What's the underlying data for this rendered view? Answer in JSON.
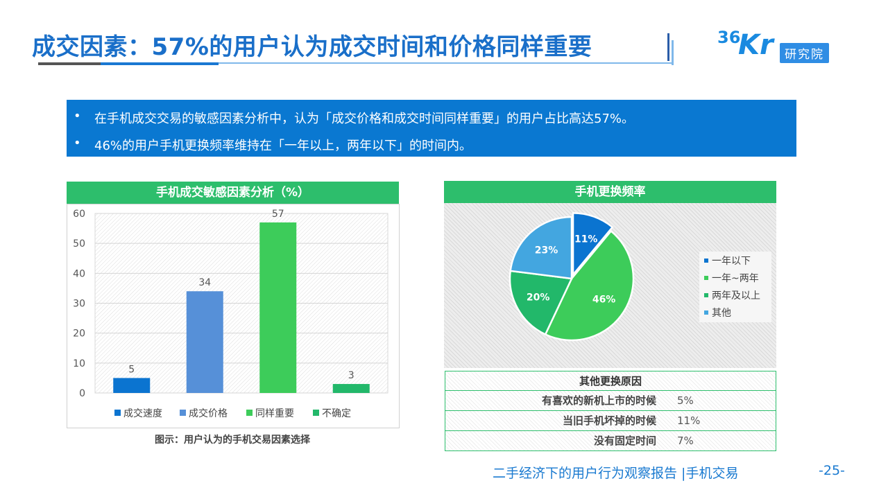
{
  "header": {
    "title": "成交因素：57%的用户认为成交时间和价格同样重要",
    "logo_mark": "36Kr",
    "logo_badge": "研究院"
  },
  "summary": {
    "bullet": "•",
    "lines": [
      "在手机成交交易的敏感因素分析中，认为「成交价格和成交时间同样重要」的用户占比高达57%。",
      "46%的用户手机更换频率维持在「一年以上，两年以下」的时间内。"
    ]
  },
  "colors": {
    "accent_blue": "#0a78d1",
    "panel_green": "#2dbe6c",
    "bar_blue_dark": "#0b74d0",
    "bar_blue_light": "#5690d8",
    "bar_green": "#3dcc5a",
    "bar_green_dark": "#22b86a",
    "pie_sky": "#43a6e0"
  },
  "bar_panel": {
    "heading": "手机成交敏感因素分析（%）",
    "caption": "图示：用户认为的手机交易因素选择"
  },
  "pie_panel": {
    "heading": "手机更换频率"
  },
  "reason_table": {
    "heading": "其他更换原因",
    "rows": [
      {
        "reason": "有喜欢的新机上市的时候",
        "value": "5%"
      },
      {
        "reason": "当旧手机坏掉的时候",
        "value": "11%"
      },
      {
        "reason": "没有固定时间",
        "value": "7%"
      }
    ]
  },
  "footer": {
    "report": "二手经济下的用户行为观察报告 |手机交易",
    "page": "-25-"
  },
  "chart_data": [
    {
      "type": "bar",
      "title": "手机成交敏感因素分析（%）",
      "categories": [
        "成交速度",
        "成交价格",
        "同样重要",
        "不确定"
      ],
      "values": [
        5,
        34,
        57,
        3
      ],
      "colors": [
        "#0b74d0",
        "#5690d8",
        "#3dcc5a",
        "#22b86a"
      ],
      "ylim": [
        0,
        60
      ],
      "yticks": [
        0,
        10,
        20,
        30,
        40,
        50,
        60
      ],
      "grid": true,
      "legend": "bottom"
    },
    {
      "type": "pie",
      "title": "手机更换频率",
      "slices": [
        {
          "label": "一年以下",
          "value": 11,
          "display": "11%",
          "color": "#0b74d0"
        },
        {
          "label": "一年~两年",
          "value": 46,
          "display": "46%",
          "color": "#3dcc5a"
        },
        {
          "label": "两年及以上",
          "value": 20,
          "display": "20%",
          "color": "#22b86a"
        },
        {
          "label": "其他",
          "value": 23,
          "display": "23%",
          "color": "#43a6e0"
        }
      ],
      "legend": "right"
    }
  ]
}
